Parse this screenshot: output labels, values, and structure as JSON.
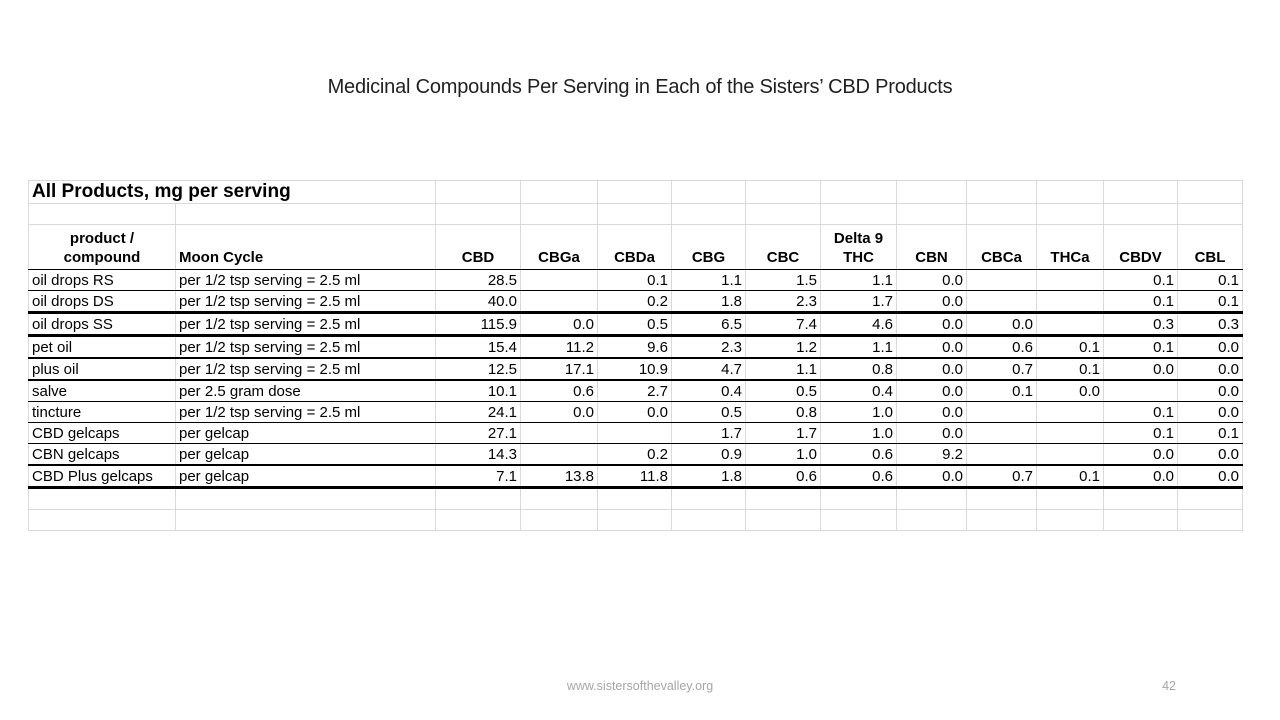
{
  "slide": {
    "title": "Medicinal Compounds Per Serving in Each of the Sisters’ CBD Products",
    "footer": {
      "website": "www.sistersofthevalley.org",
      "page_number": "42"
    }
  },
  "table": {
    "caption": "All Products, mg per serving",
    "header": {
      "product_label_lines": [
        "product /",
        "compound"
      ],
      "moon_cycle_label": "Moon Cycle",
      "compounds": [
        [
          "CBD"
        ],
        [
          "CBGa"
        ],
        [
          "CBDa"
        ],
        [
          "CBG"
        ],
        [
          "CBC"
        ],
        [
          "Delta 9",
          "THC"
        ],
        [
          "CBN"
        ],
        [
          "CBCa"
        ],
        [
          "THCa"
        ],
        [
          "CBDV"
        ],
        [
          "CBL"
        ]
      ]
    },
    "rows": [
      {
        "product": "oil drops RS",
        "moon_cycle": "per 1/2 tsp serving = 2.5 ml",
        "values": [
          "28.5",
          "",
          "0.1",
          "1.1",
          "1.5",
          "1.1",
          "0.0",
          "",
          "",
          "0.1",
          "0.1"
        ]
      },
      {
        "product": "oil drops DS",
        "moon_cycle": "per 1/2 tsp serving = 2.5 ml",
        "values": [
          "40.0",
          "",
          "0.2",
          "1.8",
          "2.3",
          "1.7",
          "0.0",
          "",
          "",
          "0.1",
          "0.1"
        ]
      },
      {
        "product": "oil drops SS",
        "moon_cycle": "per 1/2 tsp serving = 2.5 ml",
        "values": [
          "115.9",
          "0.0",
          "0.5",
          "6.5",
          "7.4",
          "4.6",
          "0.0",
          "0.0",
          "",
          "0.3",
          "0.3"
        ]
      },
      {
        "product": "pet oil",
        "moon_cycle": "per 1/2 tsp serving = 2.5 ml",
        "values": [
          "15.4",
          "11.2",
          "9.6",
          "2.3",
          "1.2",
          "1.1",
          "0.0",
          "0.6",
          "0.1",
          "0.1",
          "0.0"
        ]
      },
      {
        "product": "plus oil",
        "moon_cycle": "per 1/2 tsp serving = 2.5 ml",
        "values": [
          "12.5",
          "17.1",
          "10.9",
          "4.7",
          "1.1",
          "0.8",
          "0.0",
          "0.7",
          "0.1",
          "0.0",
          "0.0"
        ]
      },
      {
        "product": "salve",
        "moon_cycle": "per 2.5 gram dose",
        "values": [
          "10.1",
          "0.6",
          "2.7",
          "0.4",
          "0.5",
          "0.4",
          "0.0",
          "0.1",
          "0.0",
          "",
          "0.0"
        ]
      },
      {
        "product": "tincture",
        "moon_cycle": "per 1/2 tsp serving = 2.5 ml",
        "values": [
          "24.1",
          "0.0",
          "0.0",
          "0.5",
          "0.8",
          "1.0",
          "0.0",
          "",
          "",
          "0.1",
          "0.0"
        ]
      },
      {
        "product": "CBD gelcaps",
        "moon_cycle": "per gelcap",
        "values": [
          "27.1",
          "",
          "",
          "1.7",
          "1.7",
          "1.0",
          "0.0",
          "",
          "",
          "0.1",
          "0.1"
        ]
      },
      {
        "product": "CBN gelcaps",
        "moon_cycle": "per gelcap",
        "values": [
          "14.3",
          "",
          "0.2",
          "0.9",
          "1.0",
          "0.6",
          "9.2",
          "",
          "",
          "0.0",
          "0.0"
        ]
      },
      {
        "product": "CBD Plus gelcaps",
        "moon_cycle": "per gelcap",
        "values": [
          "7.1",
          "13.8",
          "11.8",
          "1.8",
          "0.6",
          "0.6",
          "0.0",
          "0.7",
          "0.1",
          "0.0",
          "0.0"
        ]
      }
    ]
  }
}
